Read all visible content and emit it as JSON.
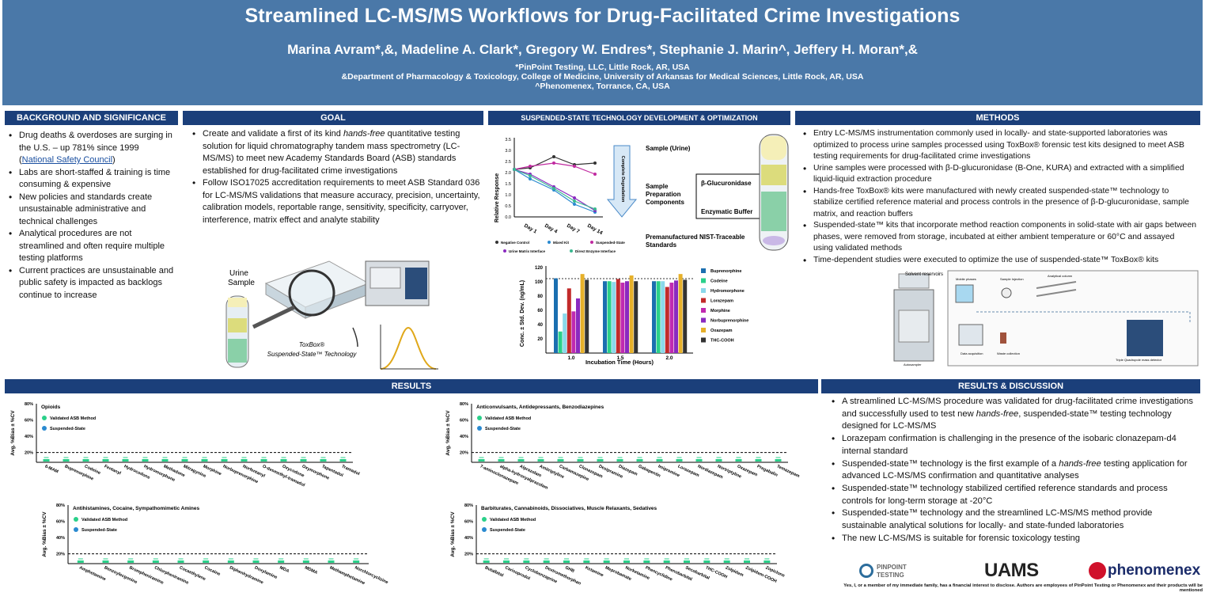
{
  "header": {
    "title": "Streamlined LC-MS/MS Workflows for Drug-Facilitated Crime Investigations",
    "authors": "Marina Avram*,&, Madeline A. Clark*, Gregory W. Endres*, Stephanie J. Marin^, Jeffery H. Moran*,&",
    "affiliations": [
      "*PinPoint Testing, LLC, Little Rock, AR, USA",
      "&Department of Pharmacology & Toxicology, College of Medicine, University of Arkansas for Medical Sciences, Little Rock, AR, USA",
      "^Phenomenex, Torrance, CA, USA"
    ]
  },
  "sections": {
    "background": "BACKGROUND AND SIGNIFICANCE",
    "goal": "GOAL",
    "suspended": "SUSPENDED-STATE TECHNOLOGY DEVELOPMENT & OPTIMIZATION",
    "methods": "METHODS",
    "results": "RESULTS",
    "discussion": "RESULTS & DISCUSSION"
  },
  "background": {
    "item1_pre": "Drug deaths & overdoses are surging in the U.S. – up 781% since 1999 (",
    "item1_link": "National Safety Council",
    "item1_post": ")",
    "items": [
      "Labs are short-staffed & training is time consuming & expensive",
      "New policies and standards create unsustainable administrative and technical challenges",
      "Analytical procedures are not streamlined and often require multiple testing platforms",
      "Current practices are unsustainable and public safety is impacted as backlogs continue to increase"
    ]
  },
  "goal": {
    "item1_pre": "Create and validate a first of its kind ",
    "item1_em": "hands-free",
    "item1_post": " quantitative testing solution for liquid chromatography tandem mass spectrometry (LC-MS/MS) to meet new Academy Standards Board (ASB) standards established for drug-facilitated crime investigations",
    "item2": "Follow ISO17025 accreditation requirements to meet ASB Standard 036 for LC-MS/MS validations that measure accuracy, precision, uncertainty, calibration models, reportable range, sensitivity, specificity, carryover, interference, matrix effect and analyte stability",
    "urine_label": "Urine Sample",
    "toxbox_line1": "ToxBox®",
    "toxbox_line2": "Suspended-State™ Technology"
  },
  "suspended": {
    "line_chart": {
      "ylabel": "Relative Response",
      "x": [
        "Day 1",
        "Day 4",
        "Day 7",
        "Day 14"
      ],
      "yticks": [
        "3.5",
        "3.0",
        "2.5",
        "2.0",
        "1.5",
        "1.0",
        "0.5",
        "0.0"
      ],
      "arrow_label": "Complete Degradation",
      "legend": [
        "Negative Control",
        "Mixed Kit",
        "Suspended-State",
        "Urine Matrix Interface",
        "Direct Enzyme Interface"
      ]
    },
    "tube_labels": {
      "sample": "Sample (Urine)",
      "prep": "Sample Preparation Components",
      "glucuronidase": "β-Glucuronidase",
      "buffer": "Enzymatic Buffer",
      "standards": "Premanufactured NIST-Traceable Standards"
    },
    "bar_chart": {
      "ylabel": "Conc. ± Std. Dev. (ng/mL)",
      "xlabel": "Incubation Time (Hours)",
      "categories": [
        "1.0",
        "1.5",
        "2.0"
      ],
      "yticks": [
        "120",
        "100",
        "80",
        "60",
        "40",
        "20"
      ],
      "legend": [
        "Buprenorphine",
        "Codeine",
        "Hydromorphone",
        "Lorazepam",
        "Morphine",
        "Norbuprenorphine",
        "Oxazepam",
        "THC-COOH"
      ]
    }
  },
  "methods": {
    "items": [
      "Entry LC-MS/MS instrumentation commonly used in locally- and state-supported laboratories was optimized to process urine samples processed using ToxBox® forensic test kits designed to meet ASB testing requirements for drug-facilitated crime investigations",
      "Urine samples were processed with β-D-glucuronidase (B-One, KURA) and extracted with a simplified liquid-liquid extraction procedure",
      "Hands-free ToxBox® kits were manufactured with newly created suspended-state™ technology to stabilize certified reference material and process controls in the presence of β-D-glucuronidase, sample matrix, and reaction buffers",
      "Suspended-state™ kits that incorporate method reaction components in solid-state with air gaps between phases, were removed from storage, incubated at either ambient temperature or 60°C and assayed using validated methods",
      "Time-dependent studies were executed to optimize the use of suspended-state™ ToxBox® kits"
    ],
    "diagram_labels": [
      "Solvent reservoirs",
      "Mobile phases",
      "Sample Injection",
      "Analytical column",
      "Autosampler",
      "Data acquisition",
      "Waste collection",
      "Triple Quadrupole mass detector"
    ]
  },
  "results_charts": [
    {
      "title": "Opioids",
      "ylabel": "Avg. %Bias ± %CV",
      "yticks": [
        "80%",
        "60%",
        "40%",
        "20%"
      ],
      "legend": [
        "Validated ASB Method",
        "Suspended-State"
      ],
      "categories": [
        "6-MAM",
        "Buprenorphine",
        "Codeine",
        "Fentanyl",
        "Hydrocodone",
        "Hydromorphone",
        "Methadone",
        "Mitragynine",
        "Morphine",
        "Norbuprenorphine",
        "Norfentanyl",
        "O-desmethyl-tramadol",
        "Oxycodone",
        "Oxymorphone",
        "Tapentadol",
        "Tramadol"
      ]
    },
    {
      "title": "Anticonvulsants, Antidepressants, Benzodiazepines",
      "ylabel": "Avg. %Bias ± %CV",
      "yticks": [
        "80%",
        "60%",
        "40%",
        "20%"
      ],
      "legend": [
        "Validated ASB Method",
        "Suspended-State"
      ],
      "categories": [
        "7-aminoclonazepam",
        "alpha-hydroxyalprazolam",
        "Alprazolam",
        "Amitriptyline",
        "Carbamazepine",
        "Clonazepam",
        "Desipramine",
        "Diazepam",
        "Gabapentin",
        "Imipramine",
        "Lorazepam",
        "Nordiazepam",
        "Nortriptyline",
        "Oxazepam",
        "Pregabalin",
        "Temazepam"
      ]
    },
    {
      "title": "Antihistamines, Cocaine, Sympathomimetic Amines",
      "ylabel": "Avg. %Bias ± %CV",
      "yticks": [
        "80%",
        "60%",
        "40%",
        "20%"
      ],
      "legend": [
        "Validated ASB Method",
        "Suspended-State"
      ],
      "categories": [
        "Amphetamine",
        "Benzoylecgonine",
        "Brompheniramine",
        "Chlorpheniramine",
        "Cocaethylene",
        "Cocaine",
        "Diphenhydramine",
        "Doxylamine",
        "MDA",
        "MDMA",
        "Methamphetamine",
        "Norchlorcyclizine"
      ]
    },
    {
      "title": "Barbiturates, Cannabinoids, Dissociatives, Muscle Relaxants, Sedatives",
      "ylabel": "Avg. %Bias ± %CV",
      "yticks": [
        "80%",
        "60%",
        "40%",
        "20%"
      ],
      "legend": [
        "Validated ASB Method",
        "Suspended-State"
      ],
      "categories": [
        "Butalbital",
        "Carisoprodol",
        "Cyclobenzaprine",
        "Dextromethorphan",
        "GHB",
        "Ketamine",
        "Meprobamate",
        "Norketamine",
        "Phencyclidine",
        "Phenobarbital",
        "Secobarbital",
        "THC-COOH",
        "Zolpidem",
        "Zolpidem-COOH",
        "Zopiclone"
      ]
    }
  ],
  "discussion": {
    "item1_pre": "A streamlined LC-MS/MS procedure was validated for drug-facilitated crime investigations and successfully used to test new ",
    "item1_em": "hands-free",
    "item1_post": ", suspended-state™ testing technology designed for LC-MS/MS",
    "item2": "Lorazepam confirmation is challenging in the presence of the isobaric clonazepam-d4 internal standard",
    "item3_pre": "Suspended-state™ technology is the first example of a ",
    "item3_em": "hands-free",
    "item3_post": " testing application for advanced LC-MS/MS confirmation and quantitative analyses",
    "item4": "Suspended-state™ technology stabilized certified reference standards and process controls for long-term storage at -20°C",
    "item5": "Suspended-state™ technology and the streamlined LC-MS/MS method provide sustainable analytical solutions for locally- and state-funded laboratories",
    "item6": "The new LC-MS/MS is suitable for forensic toxicology testing"
  },
  "logos": {
    "pinpoint1": "PINPOINT",
    "pinpoint2": "TESTING",
    "uams": "UAMS",
    "phenomenex": "phenomenex"
  },
  "disclosure": "Yes, I, or a member of my immediate family, has a financial interest to disclose. Authors are employees of PinPoint Testing or Phenomenex and their products will be mentioned"
}
